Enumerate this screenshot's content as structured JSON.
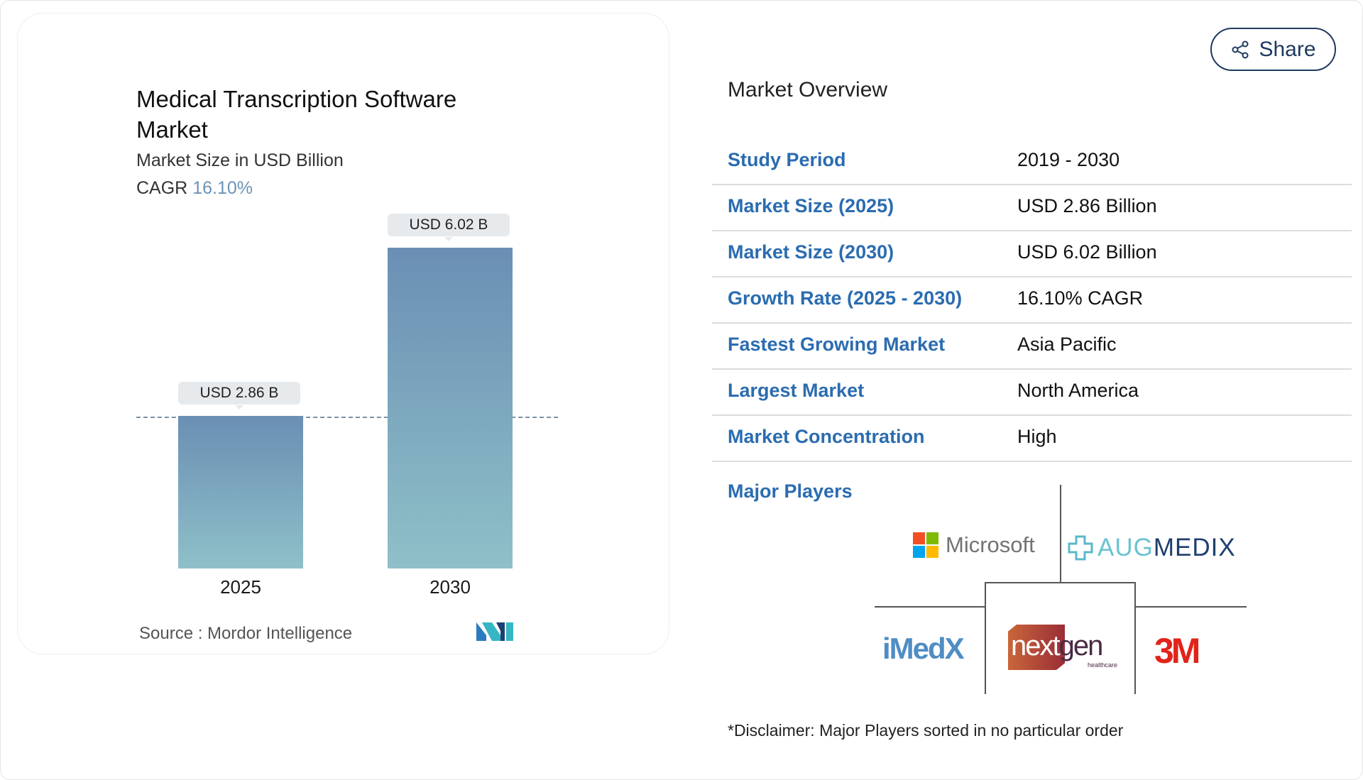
{
  "chart_card": {
    "title": "Medical Transcription Software Market",
    "subtitle": "Market Size in USD Billion",
    "cagr_label": "CAGR",
    "cagr_value": "16.10%",
    "source": "Source :  Mordor Intelligence",
    "logo_text": "MI"
  },
  "chart_data": {
    "type": "bar",
    "categories": [
      "2025",
      "2030"
    ],
    "values": [
      2.86,
      6.02
    ],
    "data_labels": [
      "USD 2.86 B",
      "USD 6.02 B"
    ],
    "title": "Medical Transcription Software Market",
    "ylabel": "Market Size in USD Billion",
    "ylim": [
      0,
      6.02
    ],
    "grid": false,
    "bar_gradient": [
      "#6a8fb4",
      "#8fc0c8"
    ]
  },
  "share": {
    "label": "Share",
    "icon": "share-icon"
  },
  "overview": {
    "title": "Market Overview",
    "rows": [
      {
        "label": "Study Period",
        "value": "2019 - 2030"
      },
      {
        "label": "Market Size (2025)",
        "value": "USD 2.86 Billion"
      },
      {
        "label": "Market Size (2030)",
        "value": "USD 6.02 Billion"
      },
      {
        "label": "Growth Rate (2025 - 2030)",
        "value": "16.10% CAGR"
      },
      {
        "label": "Fastest Growing Market",
        "value": "Asia Pacific"
      },
      {
        "label": "Largest Market",
        "value": "North America"
      },
      {
        "label": "Market Concentration",
        "value": "High"
      }
    ],
    "major_players_label": "Major Players",
    "players": [
      "Microsoft",
      "AUGMEDIX",
      "iMedX",
      "nextgen healthcare",
      "3M"
    ],
    "disclaimer": "*Disclaimer: Major Players sorted in no particular order"
  },
  "colors": {
    "accent": "#2b6cb0",
    "cagr": "#6b93b8",
    "share_border": "#1e3a5f"
  }
}
